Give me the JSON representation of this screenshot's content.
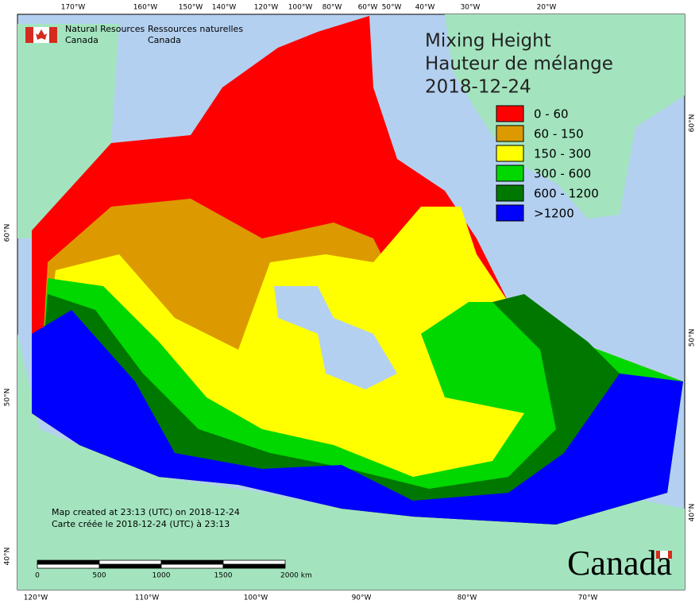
{
  "header": {
    "agency_en": [
      "Natural Resources",
      "Canada"
    ],
    "agency_fr": [
      "Ressources naturelles",
      "Canada"
    ]
  },
  "title": [
    "Mixing Height",
    "Hauteur de mélange",
    "2018-12-24"
  ],
  "legend": [
    {
      "label": "0 - 60",
      "color": "#ff0000"
    },
    {
      "label": "60 - 150",
      "color": "#dc9a00"
    },
    {
      "label": "150 - 300",
      "color": "#ffff00"
    },
    {
      "label": "300 - 600",
      "color": "#00d800"
    },
    {
      "label": "600 - 1200",
      "color": "#007800"
    },
    {
      "label": ">1200",
      "color": "#0000ff"
    }
  ],
  "graticule": {
    "top": [
      "170°W",
      "160°W",
      "150°W",
      "140°W",
      "120°W",
      "100°W",
      "80°W",
      "60°W",
      "50°W",
      "40°W",
      "30°W",
      "20°W"
    ],
    "bottom": [
      "120°W",
      "110°W",
      "100°W",
      "90°W",
      "80°W",
      "70°W"
    ],
    "left": [
      "60°N",
      "50°N",
      "40°N"
    ],
    "right": [
      "60°N",
      "50°N",
      "40°N"
    ]
  },
  "credits": [
    "Map created at 23:13 (UTC) on 2018-12-24",
    "Carte créée le 2018-12-24 (UTC) à 23:13"
  ],
  "scale_bar": [
    "0",
    "500",
    "1000",
    "1500",
    "2000 km"
  ],
  "wordmark": "Canada"
}
